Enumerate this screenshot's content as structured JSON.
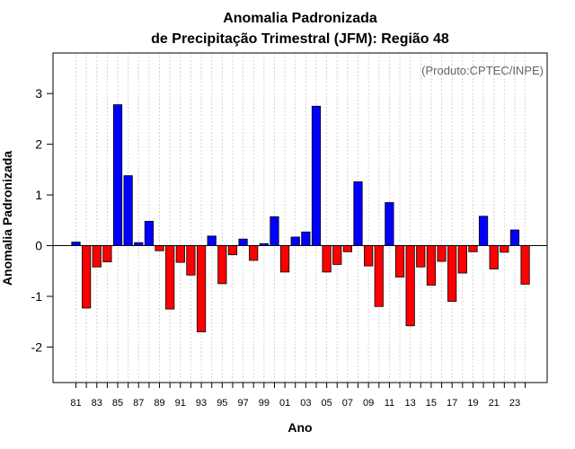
{
  "chart_data": {
    "type": "bar",
    "title": [
      "Anomalia Padronizada",
      "de Precipitação Trimestral (JFM): Região 48"
    ],
    "xlabel": "Ano",
    "ylabel": "Anomalia Padronizada",
    "credit": "(Produto:CPTEC/INPE)",
    "ylim": [
      -2.7,
      3.8
    ],
    "yticks": [
      -2,
      -1,
      0,
      1,
      2,
      3
    ],
    "x": [
      1981,
      1982,
      1983,
      1984,
      1985,
      1986,
      1987,
      1988,
      1989,
      1990,
      1991,
      1992,
      1993,
      1994,
      1995,
      1996,
      1997,
      1998,
      1999,
      2000,
      2001,
      2002,
      2003,
      2004,
      2005,
      2006,
      2007,
      2008,
      2009,
      2010,
      2011,
      2012,
      2013,
      2014,
      2015,
      2016,
      2017,
      2018,
      2019,
      2020,
      2021,
      2022,
      2023,
      2024
    ],
    "xtick_labels": [
      "81",
      "83",
      "85",
      "87",
      "89",
      "91",
      "93",
      "95",
      "97",
      "99",
      "01",
      "03",
      "05",
      "07",
      "09",
      "11",
      "13",
      "15",
      "17",
      "19",
      "21",
      "23"
    ],
    "values": [
      0.07,
      -1.23,
      -0.42,
      -0.32,
      2.78,
      1.38,
      0.06,
      0.48,
      -0.1,
      -1.25,
      -0.33,
      -0.58,
      -1.7,
      0.19,
      -0.75,
      -0.18,
      0.13,
      -0.29,
      0.04,
      0.57,
      -0.52,
      0.17,
      0.27,
      2.75,
      -0.52,
      -0.37,
      -0.12,
      1.26,
      -0.4,
      -1.2,
      0.85,
      -0.62,
      -1.58,
      -0.42,
      -0.78,
      -0.31,
      -1.1,
      -0.54,
      -0.12,
      0.58,
      -0.46,
      -0.13,
      0.31,
      -0.76
    ],
    "colors": {
      "positive": "#0000ff",
      "negative": "#ff0000",
      "outline": "#000000",
      "grid": "#d3d3d3"
    },
    "grid": "vertical-dotted",
    "legend": "none"
  }
}
